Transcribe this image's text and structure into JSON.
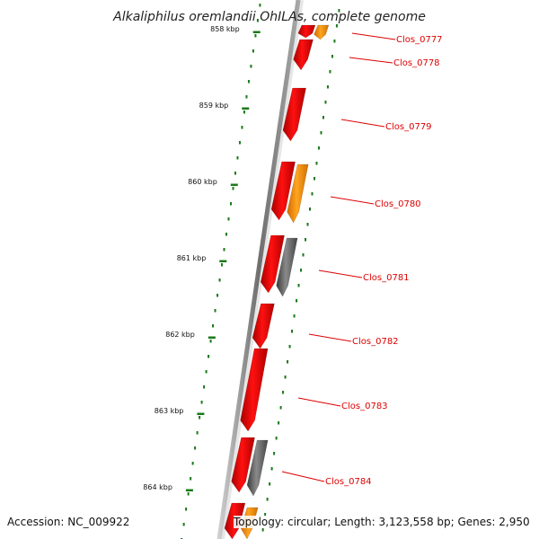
{
  "title": "Alkaliphilus oremlandii OhILAs, complete genome",
  "footer": {
    "accession": "Accession: NC_009922",
    "topology": "Topology: circular; Length: 3,123,558 bp; Genes: 2,950"
  },
  "colors": {
    "backbone": "#808080",
    "tick": "#1a7a1a",
    "label": "#dd0000",
    "gene_red": "#ee0000",
    "gene_orange": "#ff9a00",
    "gene_gray": "#6a6a6a"
  },
  "ruler": {
    "unit": "kbp",
    "ticks": [
      {
        "label": "858 kbp"
      },
      {
        "label": "859 kbp"
      },
      {
        "label": "860 kbp"
      },
      {
        "label": "861 kbp"
      },
      {
        "label": "862 kbp"
      },
      {
        "label": "863 kbp"
      },
      {
        "label": "864 kbp"
      }
    ]
  },
  "gene_labels": [
    "Clos_0777",
    "Clos_0778",
    "Clos_0779",
    "Clos_0780",
    "Clos_0781",
    "Clos_0782",
    "Clos_0783",
    "Clos_0784"
  ],
  "genes": [
    {
      "color": "red",
      "track": "inner"
    },
    {
      "color": "orange",
      "track": "outer"
    },
    {
      "color": "red",
      "track": "inner"
    },
    {
      "color": "red",
      "track": "inner"
    },
    {
      "color": "red",
      "track": "inner"
    },
    {
      "color": "orange",
      "track": "outer"
    },
    {
      "color": "red",
      "track": "inner"
    },
    {
      "color": "gray",
      "track": "outer"
    },
    {
      "color": "red",
      "track": "inner"
    },
    {
      "color": "red",
      "track": "inner"
    },
    {
      "color": "red",
      "track": "inner"
    },
    {
      "color": "gray",
      "track": "outer"
    },
    {
      "color": "red",
      "track": "inner"
    },
    {
      "color": "orange",
      "track": "outer"
    }
  ]
}
